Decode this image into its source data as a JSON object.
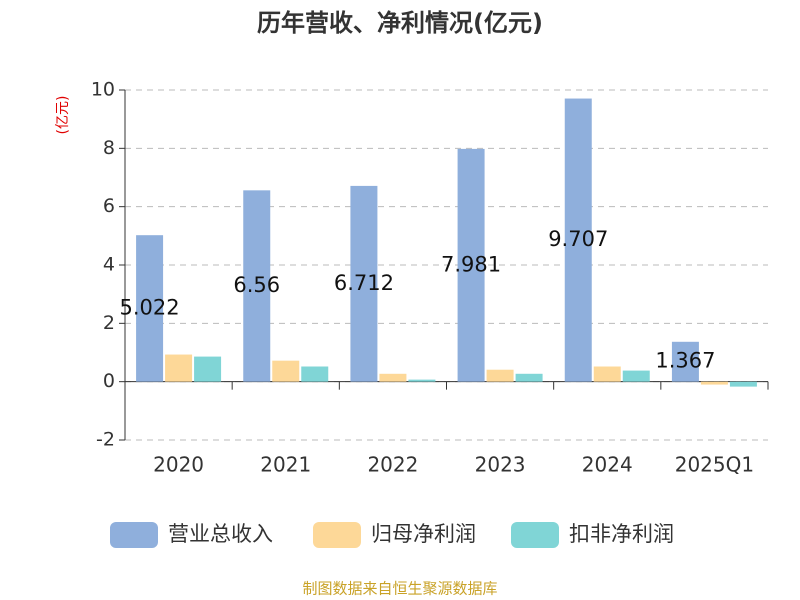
{
  "chart_data": {
    "type": "bar",
    "title": "历年营收、净利情况(亿元)",
    "y_label": "(亿元)",
    "source": "制图数据来自恒生聚源数据库",
    "categories": [
      "2020",
      "2021",
      "2022",
      "2023",
      "2024",
      "2025Q1"
    ],
    "series": [
      {
        "name": "营业总收入",
        "color": "#8fafdc",
        "data_labels": true,
        "values": [
          5.022,
          6.56,
          6.712,
          7.981,
          9.707,
          1.367
        ]
      },
      {
        "name": "归母净利润",
        "color": "#fdd898",
        "values": [
          0.93,
          0.72,
          0.27,
          0.41,
          0.52,
          -0.1
        ]
      },
      {
        "name": "扣非净利润",
        "color": "#80d5d6",
        "values": [
          0.86,
          0.52,
          0.07,
          0.27,
          0.38,
          -0.17
        ]
      }
    ],
    "ylim": [
      -2,
      10
    ],
    "yticks": [
      -2,
      0,
      2,
      4,
      6,
      8,
      10
    ],
    "grid": true
  }
}
